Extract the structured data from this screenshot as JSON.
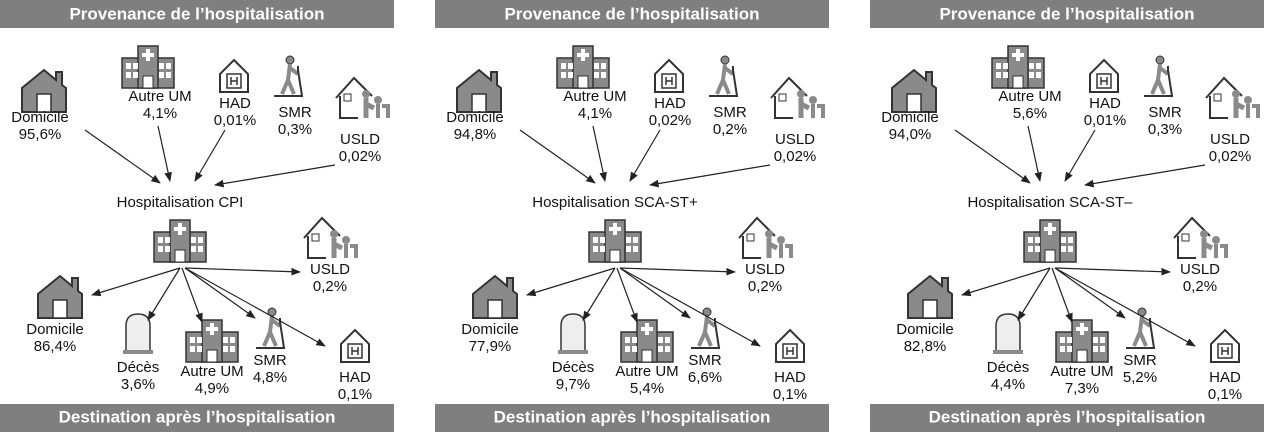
{
  "panels": [
    {
      "header": "Provenance de l’hospitalisation",
      "center": "Hospitalisation CPI",
      "footer": "Destination après l’hospitalisation",
      "sources": [
        {
          "label": "Domicile",
          "value": "95,6%"
        },
        {
          "label": "Autre UM",
          "value": "4,1%"
        },
        {
          "label": "HAD",
          "value": "0,01%"
        },
        {
          "label": "SMR",
          "value": "0,3%"
        },
        {
          "label": "USLD",
          "value": "0,02%"
        }
      ],
      "destinations": [
        {
          "label": "USLD",
          "value": "0,2%"
        },
        {
          "label": "Domicile",
          "value": "86,4%"
        },
        {
          "label": "Décès",
          "value": "3,6%"
        },
        {
          "label": "Autre UM",
          "value": "4,9%"
        },
        {
          "label": "SMR",
          "value": "4,8%"
        },
        {
          "label": "HAD",
          "value": "0,1%"
        }
      ]
    },
    {
      "header": "Provenance de l’hospitalisation",
      "center": "Hospitalisation SCA-ST+",
      "footer": "Destination après l’hospitalisation",
      "sources": [
        {
          "label": "Domicile",
          "value": "94,8%"
        },
        {
          "label": "Autre UM",
          "value": "4,1%"
        },
        {
          "label": "HAD",
          "value": "0,02%"
        },
        {
          "label": "SMR",
          "value": "0,2%"
        },
        {
          "label": "USLD",
          "value": "0,02%"
        }
      ],
      "destinations": [
        {
          "label": "USLD",
          "value": "0,2%"
        },
        {
          "label": "Domicile",
          "value": "77,9%"
        },
        {
          "label": "Décès",
          "value": "9,7%"
        },
        {
          "label": "Autre UM",
          "value": "5,4%"
        },
        {
          "label": "SMR",
          "value": "6,6%"
        },
        {
          "label": "HAD",
          "value": "0,1%"
        }
      ]
    },
    {
      "header": "Provenance de l’hospitalisation",
      "center": "Hospitalisation SCA-ST–",
      "footer": "Destination après l’hospitalisation",
      "sources": [
        {
          "label": "Domicile",
          "value": "94,0%"
        },
        {
          "label": "Autre UM",
          "value": "5,6%"
        },
        {
          "label": "HAD",
          "value": "0,01%"
        },
        {
          "label": "SMR",
          "value": "0,3%"
        },
        {
          "label": "USLD",
          "value": "0,02%"
        }
      ],
      "destinations": [
        {
          "label": "USLD",
          "value": "0,2%"
        },
        {
          "label": "Domicile",
          "value": "82,8%"
        },
        {
          "label": "Décès",
          "value": "4,4%"
        },
        {
          "label": "Autre UM",
          "value": "7,3%"
        },
        {
          "label": "SMR",
          "value": "5,2%"
        },
        {
          "label": "HAD",
          "value": "0,1%"
        }
      ]
    }
  ]
}
